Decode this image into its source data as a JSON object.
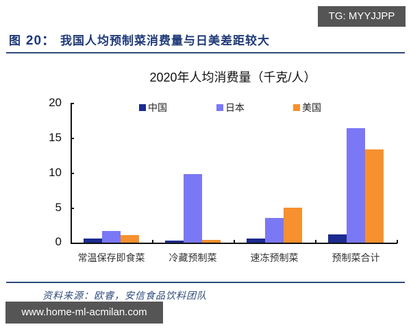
{
  "header": {
    "figure_prefix": "图",
    "figure_number": "20：",
    "figure_title": "我国人均预制菜消费量与日美差距较大"
  },
  "watermarks": {
    "top_right": "TG: MYYJJPP",
    "bottom_left": "www.home-ml-acmilan.com"
  },
  "source": "资料来源：欧睿，安信食品饮料团队",
  "colors": {
    "china": "#1c2b8f",
    "japan": "#7a78f5",
    "usa": "#f7902e",
    "header_blue": "#1f3a78"
  },
  "chart_data": {
    "type": "bar",
    "title": "2020年人均消费量（千克/人）",
    "xlabel": "",
    "ylabel": "",
    "ylim": [
      0,
      20
    ],
    "yticks": [
      "0",
      "5",
      "10",
      "15",
      "20"
    ],
    "grid": false,
    "legend_position": "top",
    "categories": [
      "常温保存即食菜",
      "冷藏预制菜",
      "速冻预制菜",
      "预制菜合计"
    ],
    "series": [
      {
        "name": "中国",
        "color": "#1c2b8f",
        "values": [
          0.6,
          0.3,
          0.6,
          1.2
        ]
      },
      {
        "name": "日本",
        "color": "#7a78f5",
        "values": [
          1.7,
          9.8,
          3.5,
          16.4
        ]
      },
      {
        "name": "美国",
        "color": "#f7902e",
        "values": [
          1.1,
          0.4,
          5.0,
          13.3
        ]
      }
    ]
  }
}
